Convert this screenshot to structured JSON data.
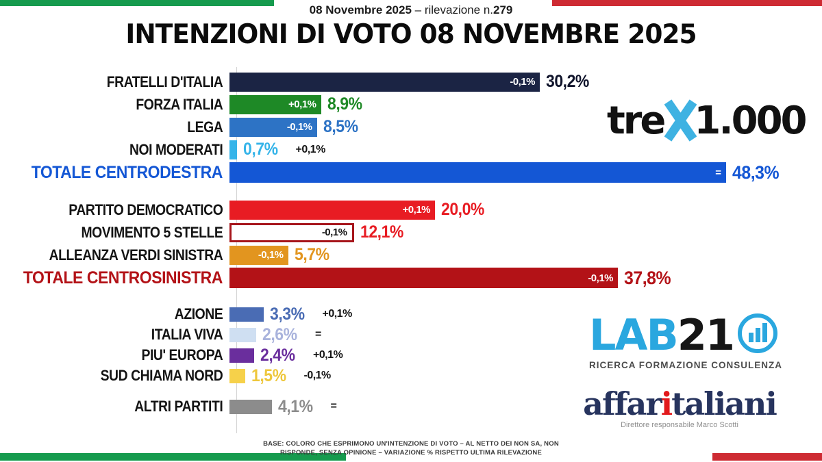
{
  "header": {
    "subtitle_bold": "08 Novembre 2025",
    "subtitle_sep": " – ",
    "subtitle_normal": "rilevazione n.",
    "subtitle_number": "279",
    "title": "INTENZIONI DI VOTO 08 NOVEMBRE 2025"
  },
  "flag": {
    "green": "#169b4e",
    "red": "#ce2b33"
  },
  "chart_data": {
    "type": "bar",
    "orientation": "horizontal",
    "value_unit": "%",
    "xlim": [
      0,
      50
    ],
    "note": "variazione % rispetto ultima rilevazione",
    "rows": [
      {
        "label": "FRATELLI D'ITALIA",
        "value": 30.2,
        "value_label": "30,2%",
        "change": -0.1,
        "change_label": "-0,1%",
        "change_placement": "inside",
        "block": 1,
        "bar_color": "#1b2444",
        "value_color": "#10142b",
        "label_color": "#141414",
        "change_color": "#ffffff"
      },
      {
        "label": "FORZA ITALIA",
        "value": 8.9,
        "value_label": "8,9%",
        "change": 0.1,
        "change_label": "+0,1%",
        "change_placement": "inside",
        "block": 1,
        "bar_color": "#1e8926",
        "value_color": "#1e8926",
        "label_color": "#141414",
        "change_color": "#ffffff"
      },
      {
        "label": "LEGA",
        "value": 8.5,
        "value_label": "8,5%",
        "change": -0.1,
        "change_label": "-0,1%",
        "change_placement": "inside",
        "block": 1,
        "bar_color": "#2d73c5",
        "value_color": "#2d73c5",
        "label_color": "#141414",
        "change_color": "#ffffff"
      },
      {
        "label": "NOI MODERATI",
        "value": 0.7,
        "value_label": "0,7%",
        "change": 0.1,
        "change_label": "+0,1%",
        "change_placement": "outside",
        "block": 1,
        "bar_color": "#35b4e9",
        "value_color": "#35b4e9",
        "label_color": "#141414",
        "change_color": "#141414"
      },
      {
        "label": "TOTALE CENTRODESTRA",
        "value": 48.3,
        "value_label": "48,3%",
        "change": 0,
        "change_label": "=",
        "change_placement": "inside",
        "block": 1,
        "total": true,
        "bar_color": "#1457d5",
        "value_color": "#1457d5",
        "label_color": "#1457d5",
        "change_color": "#ffffff"
      },
      {
        "label": "PARTITO DEMOCRATICO",
        "value": 20.0,
        "value_label": "20,0%",
        "change": 0.1,
        "change_label": "+0,1%",
        "change_placement": "inside",
        "block": 2,
        "bar_color": "#e81c23",
        "value_color": "#e81c23",
        "label_color": "#141414",
        "change_color": "#ffffff"
      },
      {
        "label": "MOVIMENTO 5 STELLE",
        "value": 12.1,
        "value_label": "12,1%",
        "change": -0.1,
        "change_label": "-0,1%",
        "change_placement": "inside",
        "block": 2,
        "outlined": true,
        "bar_color": "#ffffff",
        "border_color": "#a6151b",
        "value_color": "#e81c23",
        "label_color": "#141414",
        "change_color": "#141414"
      },
      {
        "label": "ALLEANZA VERDI SINISTRA",
        "value": 5.7,
        "value_label": "5,7%",
        "change": -0.1,
        "change_label": "-0,1%",
        "change_placement": "inside",
        "block": 2,
        "bar_color": "#e2951f",
        "value_color": "#e2951f",
        "label_color": "#141414",
        "change_color": "#ffffff"
      },
      {
        "label": "TOTALE CENTROSINISTRA",
        "value": 37.8,
        "value_label": "37,8%",
        "change": -0.1,
        "change_label": "-0,1%",
        "change_placement": "inside",
        "block": 2,
        "total": true,
        "bar_color": "#b31217",
        "value_color": "#b31217",
        "label_color": "#b31217",
        "change_color": "#ffffff"
      },
      {
        "label": "AZIONE",
        "value": 3.3,
        "value_label": "3,3%",
        "change": 0.1,
        "change_label": "+0,1%",
        "change_placement": "outside",
        "block": 3,
        "bar_color": "#4a6cb4",
        "value_color": "#4a6cb4",
        "label_color": "#141414",
        "change_color": "#141414"
      },
      {
        "label": "ITALIA VIVA",
        "value": 2.6,
        "value_label": "2,6%",
        "change": 0,
        "change_label": "=",
        "change_placement": "outside",
        "block": 3,
        "bar_color": "#cfdff2",
        "value_color": "#a9b3dc",
        "label_color": "#141414",
        "change_color": "#141414"
      },
      {
        "label": "PIU' EUROPA",
        "value": 2.4,
        "value_label": "2,4%",
        "change": 0.1,
        "change_label": "+0,1%",
        "change_placement": "outside",
        "block": 3,
        "bar_color": "#6a2e9d",
        "value_color": "#6a2e9d",
        "label_color": "#141414",
        "change_color": "#141414"
      },
      {
        "label": "SUD CHIAMA NORD",
        "value": 1.5,
        "value_label": "1,5%",
        "change": -0.1,
        "change_label": "-0,1%",
        "change_placement": "outside",
        "block": 3,
        "bar_color": "#f6d14a",
        "value_color": "#eec73c",
        "label_color": "#141414",
        "change_color": "#141414"
      },
      {
        "label": "ALTRI PARTITI",
        "value": 4.1,
        "value_label": "4,1%",
        "change": 0,
        "change_label": "=",
        "change_placement": "outside",
        "block": 4,
        "bar_color": "#8c8c8c",
        "value_color": "#8c8c8c",
        "label_color": "#141414",
        "change_color": "#141414"
      }
    ]
  },
  "logos": {
    "trex": {
      "part1": "tre",
      "part2": "1.000",
      "x_color": "#3eb2e2"
    },
    "lab21": {
      "part1": "LAB",
      "part2": "21",
      "subtitle": "RICERCA FORMAZIONE CONSULENZA",
      "accent": "#2aa7df"
    },
    "affaritaliani": {
      "part1": "affar",
      "part_i": "i",
      "part2": "taliani",
      "subtitle": "Direttore responsabile Marco Scotti"
    }
  },
  "footer": {
    "line1": "BASE: COLORO CHE ESPRIMONO UN'INTENZIONE DI VOTO – AL NETTO DEI NON SA, NON",
    "line2": "RISPONDE, SENZA OPINIONE – VARIAZIONE % RISPETTO ULTIMA RILEVAZIONE"
  }
}
